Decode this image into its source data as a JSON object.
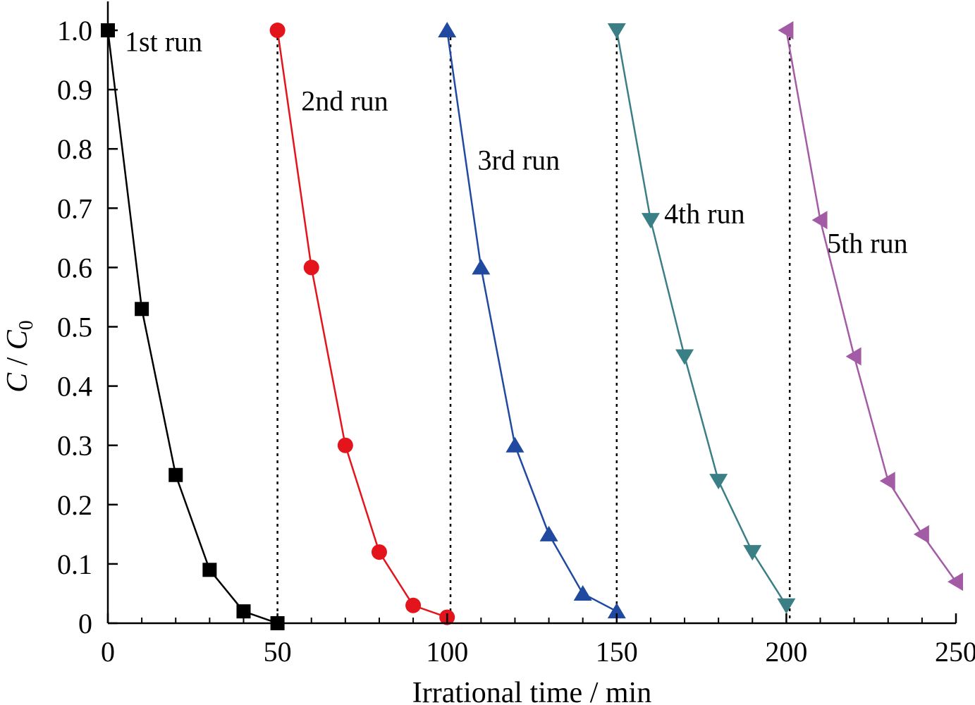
{
  "chart_data": {
    "type": "line",
    "xlabel": "Irrational time / min",
    "ylabel_main": "C",
    "ylabel_sep": " / ",
    "ylabel_base": "C",
    "ylabel_sub": "0",
    "xlim": [
      0,
      250
    ],
    "ylim": [
      0,
      1.05
    ],
    "x_ticks": [
      0,
      50,
      100,
      150,
      200,
      250
    ],
    "x_tick_labels": [
      "0",
      "50",
      "100",
      "150",
      "200",
      "250"
    ],
    "x_minor_ticks": [
      10,
      20,
      30,
      40,
      60,
      70,
      80,
      90,
      110,
      120,
      130,
      140,
      160,
      170,
      180,
      190,
      210,
      220,
      230,
      240
    ],
    "y_ticks": [
      0,
      0.1,
      0.2,
      0.3,
      0.4,
      0.5,
      0.6,
      0.7,
      0.8,
      0.9,
      1.0
    ],
    "y_tick_labels": [
      "0",
      "0.1",
      "0.2",
      "0.3",
      "0.4",
      "0.5",
      "0.6",
      "0.7",
      "0.8",
      "0.9",
      "1.0"
    ],
    "grid": false,
    "run_separators_x": [
      50,
      101,
      150,
      201
    ],
    "series": [
      {
        "name": "1st run",
        "color": "#000000",
        "marker": "square",
        "x": [
          0,
          10,
          20,
          30,
          40,
          50
        ],
        "y": [
          1.0,
          0.53,
          0.25,
          0.09,
          0.02,
          0.0
        ],
        "label_at": [
          5,
          0.965
        ]
      },
      {
        "name": "2nd run",
        "color": "#e3141b",
        "marker": "circle",
        "x": [
          50,
          60,
          70,
          80,
          90,
          100
        ],
        "y": [
          1.0,
          0.6,
          0.3,
          0.12,
          0.03,
          0.01
        ],
        "label_at": [
          57,
          0.865
        ]
      },
      {
        "name": "3rd run",
        "color": "#1f4aa0",
        "marker": "triangle-up",
        "x": [
          100,
          110,
          120,
          130,
          140,
          150
        ],
        "y": [
          1.0,
          0.6,
          0.3,
          0.15,
          0.05,
          0.02
        ],
        "label_at": [
          109,
          0.765
        ]
      },
      {
        "name": "4th run",
        "color": "#3b7f86",
        "marker": "triangle-down",
        "x": [
          150,
          160,
          170,
          180,
          190,
          200
        ],
        "y": [
          1.0,
          0.68,
          0.45,
          0.24,
          0.12,
          0.03
        ],
        "label_at": [
          164,
          0.675
        ]
      },
      {
        "name": "5th run",
        "color": "#a45ba5",
        "marker": "triangle-left",
        "x": [
          200,
          210,
          220,
          230,
          240,
          250
        ],
        "y": [
          1.0,
          0.68,
          0.45,
          0.24,
          0.15,
          0.07
        ],
        "label_at": [
          212,
          0.625
        ]
      }
    ]
  }
}
